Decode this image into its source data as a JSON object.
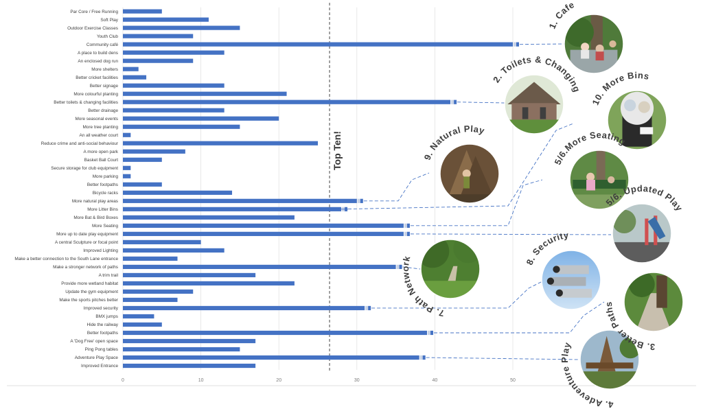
{
  "chart_data": {
    "type": "bar",
    "orientation": "horizontal",
    "categories": [
      "Par Core / Free Running",
      "Soft Play",
      "Outdoor Exercise Classes",
      "Youth Club",
      "Community café",
      "A place to build dens",
      "An enclosed dog run",
      "More shelters",
      "Better cricket facilities",
      "Better signage",
      "More colourful planting",
      "Better toilets & changing facilities",
      "Better drainage",
      "More seasonal events",
      "More tree planting",
      "An all weather court",
      "Reduce crime and anti-social behaviour",
      "A more open park",
      "Basket Ball Court",
      "Secure storage for club equipment",
      "More parking",
      "Better footpaths",
      "Bicycle racks",
      "More natural play areas",
      "More Litter Bins",
      "More Bat & Bird Boxes",
      "More Seating",
      "More up to date play equipment",
      "A central Sculpture or focal point",
      "Improved Lighting",
      "Make a better connection to the South Lane entrance",
      "Make a stronger network of paths",
      "A trim trail",
      "Provide more wetland habitat",
      "Update the gym equipment",
      "Make the sports pitches better",
      "Improved security",
      "BMX jumps",
      "Hide the railway",
      "Better footpaths",
      "A 'Dog Free' open space",
      "Ping Pong tables",
      "Adventure Play Space",
      "Improved Entrance"
    ],
    "values": [
      5,
      11,
      15,
      9,
      50,
      13,
      9,
      2,
      3,
      13,
      21,
      42,
      13,
      20,
      15,
      1,
      25,
      8,
      5,
      1,
      1,
      5,
      14,
      30,
      28,
      22,
      36,
      36,
      10,
      13,
      7,
      35,
      17,
      22,
      9,
      7,
      31,
      4,
      5,
      39,
      17,
      15,
      38,
      17
    ],
    "xlim": [
      0,
      50
    ],
    "xticks": [
      0,
      10,
      20,
      30,
      40,
      50
    ],
    "threshold": {
      "value": 26.5,
      "label": "Top Ten!"
    },
    "accent_color": "#4472c4",
    "callouts": [
      {
        "label": "1. Cafe",
        "category_index": 4,
        "photo": "cafe-photo"
      },
      {
        "label": "2. Toilets & Changing",
        "category_index": 11,
        "photo": "toilets-photo"
      },
      {
        "label": "10. More Bins",
        "category_index": 24,
        "photo": "bins-photo"
      },
      {
        "label": "9. Natural Play",
        "category_index": 23,
        "photo": "natural-play-photo"
      },
      {
        "label": "5/6.More Seating",
        "category_index": 26,
        "photo": "seating-photo"
      },
      {
        "label": "5/6. Updated Play",
        "category_index": 27,
        "photo": "play-photo"
      },
      {
        "label": "7. Path Network",
        "category_index": 31,
        "photo": "path-photo"
      },
      {
        "label": "8. Security",
        "category_index": 36,
        "photo": "security-photo"
      },
      {
        "label": "3. Better Paths",
        "category_index": 39,
        "photo": "paths-photo"
      },
      {
        "label": "4. Adeventure Play",
        "category_index": 42,
        "photo": "adventure-photo"
      }
    ]
  }
}
